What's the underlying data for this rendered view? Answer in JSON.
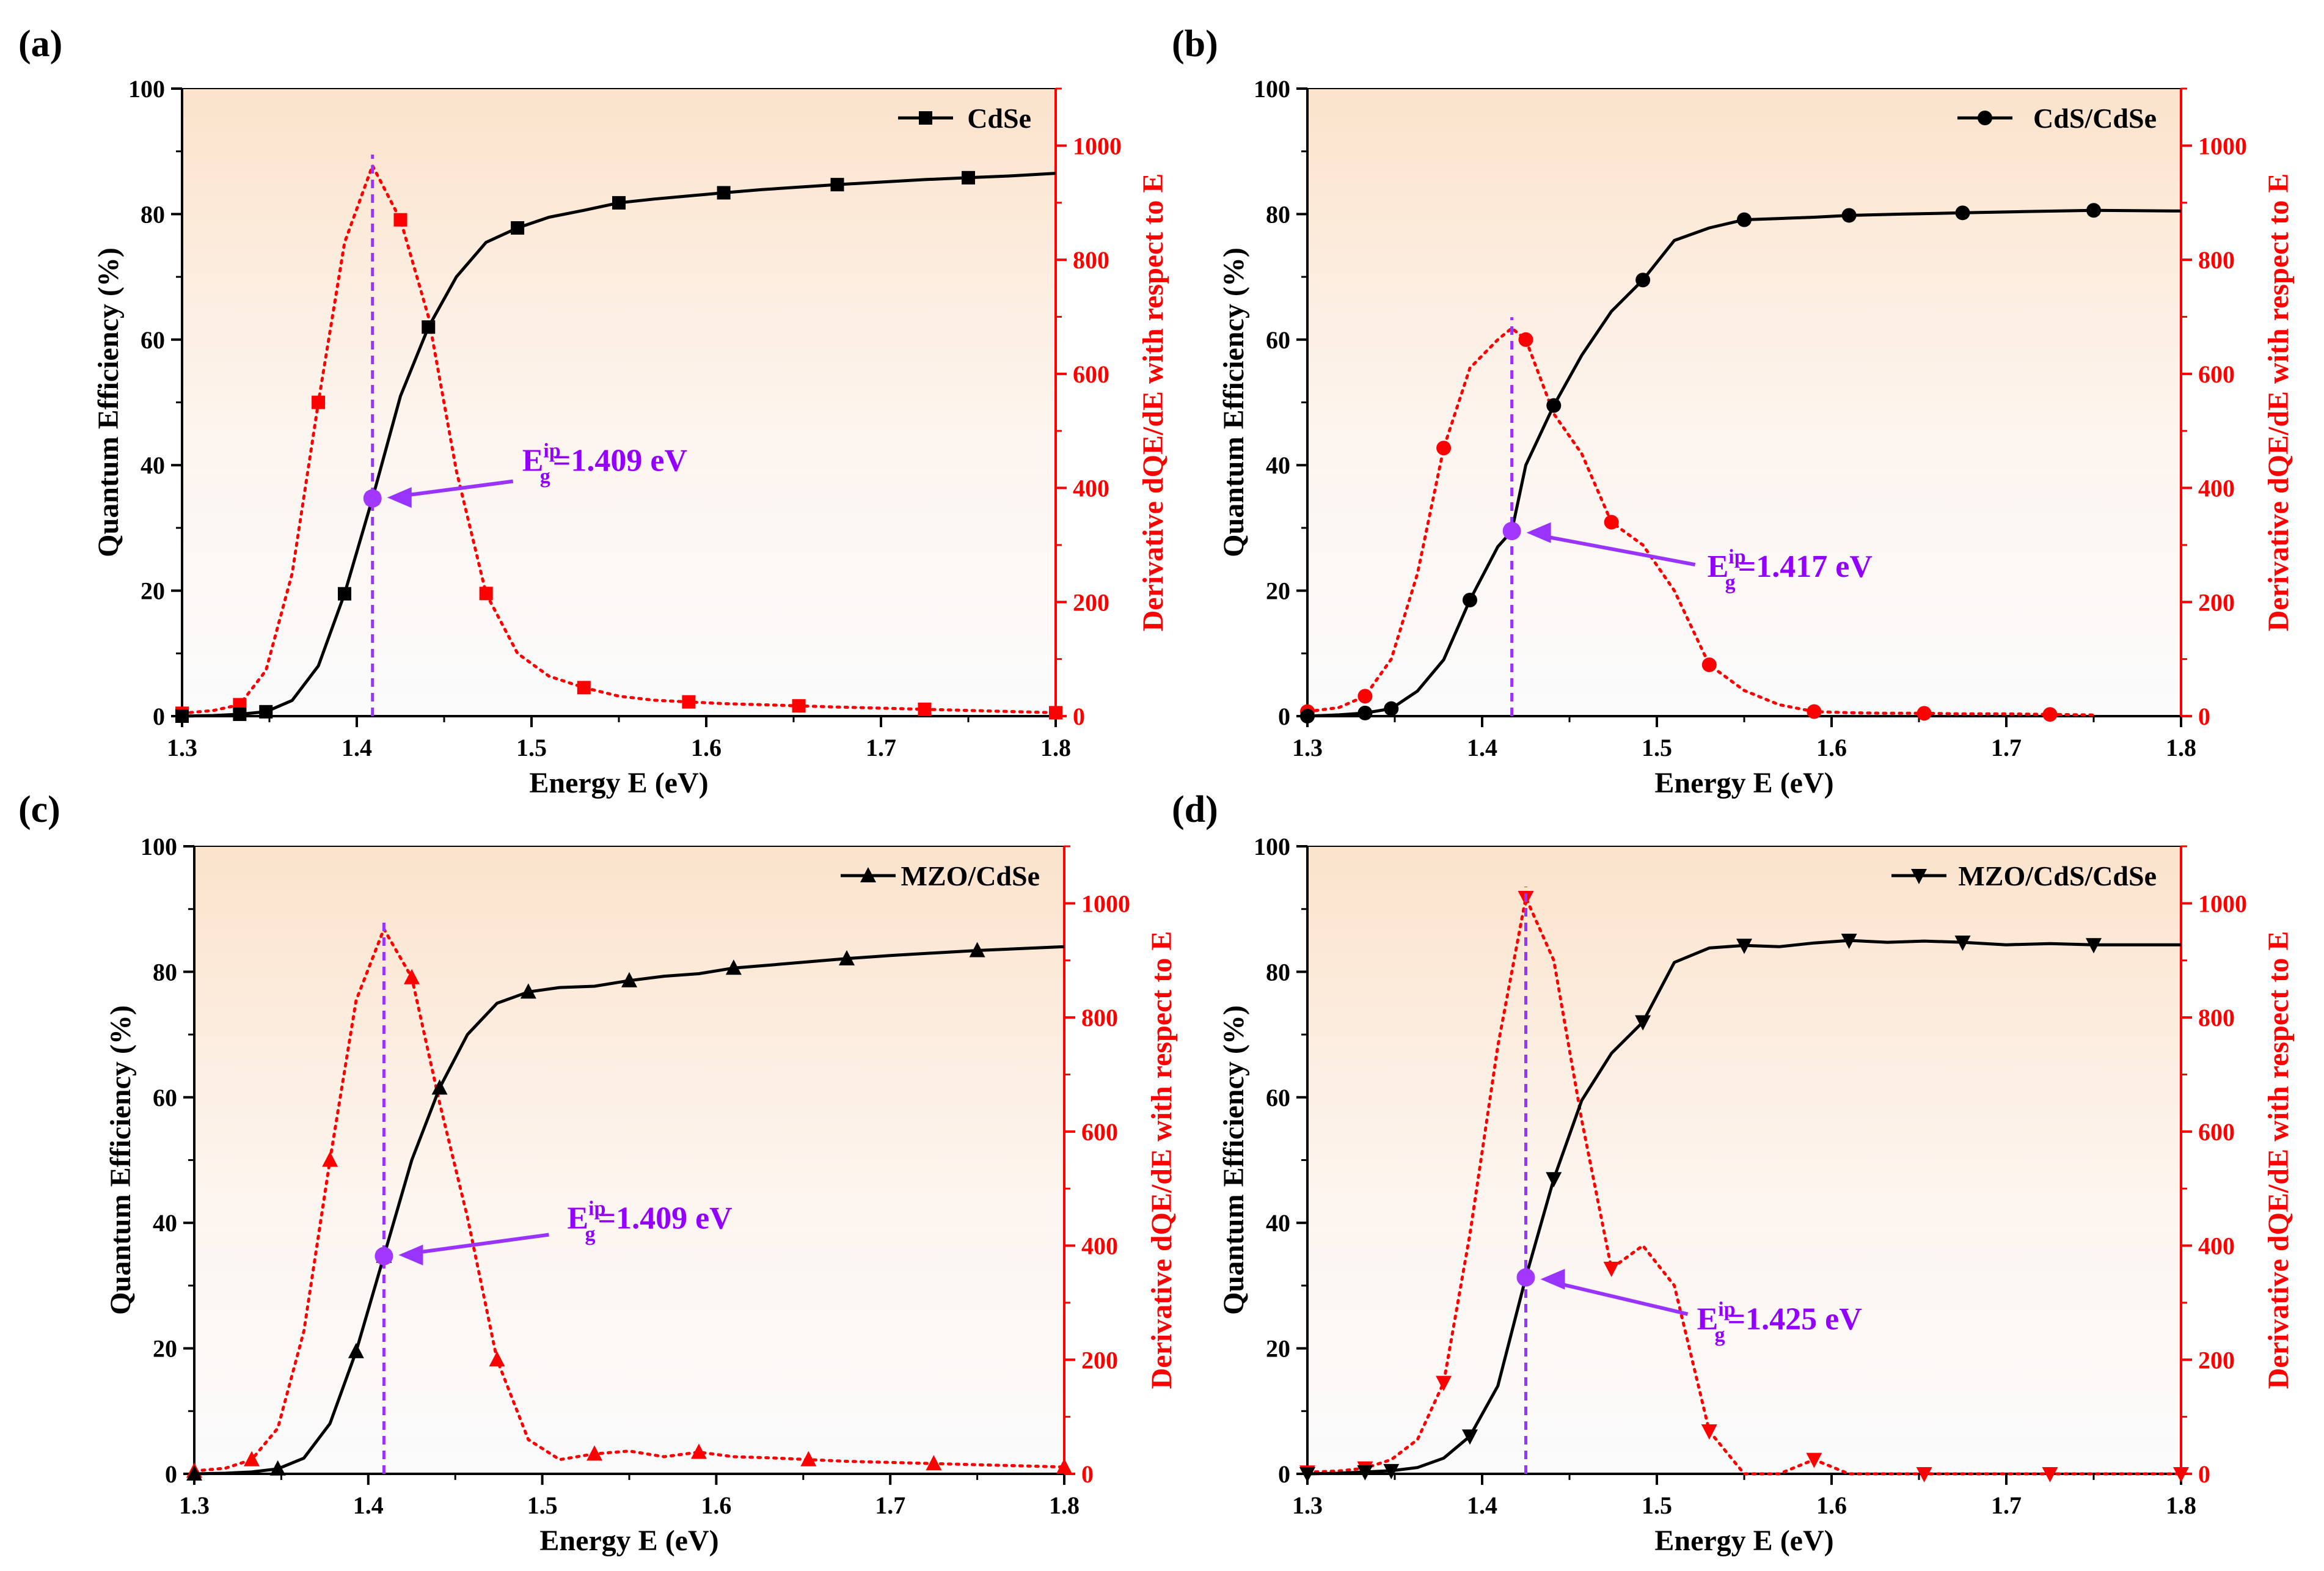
{
  "chart_data": [
    {
      "type": "line",
      "panel_label": "(a)",
      "xlabel": "Energy E (eV)",
      "ylabel": "Quantum Efficiency (%)",
      "y2label": "Derivative dQE/dE with respect to E",
      "xlim": [
        1.3,
        1.8
      ],
      "ylim": [
        0,
        100
      ],
      "y2lim": [
        0,
        1100
      ],
      "xticks": [
        "1.3",
        "1.4",
        "1.5",
        "1.6",
        "1.7",
        "1.8"
      ],
      "yticks": [
        "0",
        "20",
        "40",
        "60",
        "80",
        "100"
      ],
      "y2ticks": [
        "0",
        "200",
        "400",
        "600",
        "800",
        "1000"
      ],
      "legend": "CdSe",
      "marker": "square",
      "annotation": {
        "prefix": "E",
        "sub": "g",
        "sup": "ip",
        "text": "=1.409 eV",
        "x": 1.409,
        "qe": 34.7
      },
      "series": [
        {
          "name": "QE",
          "axis": "left",
          "x": [
            1.3,
            1.318,
            1.333,
            1.348,
            1.363,
            1.378,
            1.393,
            1.409,
            1.425,
            1.441,
            1.457,
            1.474,
            1.492,
            1.51,
            1.53,
            1.55,
            1.57,
            1.59,
            1.61,
            1.632,
            1.653,
            1.675,
            1.7,
            1.725,
            1.75,
            1.775,
            1.8
          ],
          "y": [
            0,
            0.1,
            0.3,
            0.7,
            2.5,
            8,
            19.5,
            34.7,
            51,
            62,
            70,
            75.5,
            77.8,
            79.5,
            80.6,
            81.8,
            82.4,
            82.9,
            83.4,
            83.9,
            84.3,
            84.7,
            85.1,
            85.5,
            85.8,
            86.1,
            86.5
          ],
          "markers_x": [
            1.3,
            1.333,
            1.348,
            1.393,
            1.409,
            1.441,
            1.492,
            1.55,
            1.61,
            1.675,
            1.75
          ]
        },
        {
          "name": "dQE/dE",
          "axis": "right",
          "x": [
            1.3,
            1.318,
            1.333,
            1.348,
            1.363,
            1.378,
            1.393,
            1.409,
            1.425,
            1.441,
            1.457,
            1.474,
            1.492,
            1.51,
            1.53,
            1.55,
            1.57,
            1.59,
            1.61,
            1.632,
            1.653,
            1.675,
            1.7,
            1.725,
            1.75,
            1.775,
            1.8
          ],
          "y": [
            5,
            10,
            20,
            80,
            250,
            550,
            830,
            965,
            870,
            700,
            430,
            215,
            110,
            70,
            50,
            35,
            28,
            25,
            22,
            20,
            18,
            16,
            14,
            12,
            10,
            8,
            6
          ],
          "markers_x": [
            1.3,
            1.333,
            1.378,
            1.425,
            1.474,
            1.53,
            1.59,
            1.653,
            1.725,
            1.8
          ]
        }
      ]
    },
    {
      "type": "line",
      "panel_label": "(b)",
      "xlabel": "Energy E (eV)",
      "ylabel": "Quantum Efficiency (%)",
      "y2label": "Derivative dQE/dE with respect to E",
      "xlim": [
        1.3,
        1.8
      ],
      "ylim": [
        0,
        100
      ],
      "y2lim": [
        0,
        1100
      ],
      "xticks": [
        "1.3",
        "1.4",
        "1.5",
        "1.6",
        "1.7",
        "1.8"
      ],
      "yticks": [
        "0",
        "20",
        "40",
        "60",
        "80",
        "100"
      ],
      "y2ticks": [
        "0",
        "200",
        "400",
        "600",
        "800",
        "1000"
      ],
      "legend": "CdS/CdSe",
      "marker": "circle",
      "annotation": {
        "prefix": "E",
        "sub": "g",
        "sup": "ip",
        "text": "=1.417 eV",
        "x": 1.417,
        "qe": 29.5
      },
      "series": [
        {
          "name": "QE",
          "axis": "left",
          "x": [
            1.3,
            1.318,
            1.333,
            1.348,
            1.363,
            1.378,
            1.393,
            1.409,
            1.417,
            1.425,
            1.441,
            1.457,
            1.474,
            1.492,
            1.51,
            1.53,
            1.55,
            1.57,
            1.59,
            1.61,
            1.64,
            1.675,
            1.71,
            1.75,
            1.8
          ],
          "y": [
            0,
            0.2,
            0.5,
            1.2,
            4,
            9,
            18.5,
            27,
            29.5,
            40,
            49.5,
            57.5,
            64.5,
            69.5,
            75.8,
            77.8,
            79.1,
            79.3,
            79.5,
            79.8,
            80.0,
            80.2,
            80.4,
            80.6,
            80.5
          ],
          "markers_x": [
            1.3,
            1.333,
            1.348,
            1.393,
            1.441,
            1.492,
            1.55,
            1.61,
            1.675,
            1.75
          ]
        },
        {
          "name": "dQE/dE",
          "axis": "right",
          "x": [
            1.3,
            1.318,
            1.333,
            1.348,
            1.363,
            1.378,
            1.393,
            1.409,
            1.417,
            1.425,
            1.441,
            1.457,
            1.474,
            1.492,
            1.51,
            1.53,
            1.55,
            1.57,
            1.59,
            1.61,
            1.632,
            1.653,
            1.675,
            1.7,
            1.725,
            1.75
          ],
          "y": [
            8,
            15,
            35,
            100,
            250,
            470,
            610,
            660,
            680,
            660,
            530,
            460,
            340,
            300,
            220,
            90,
            45,
            20,
            8,
            6,
            5,
            5,
            4,
            4,
            3,
            2
          ],
          "markers_x": [
            1.3,
            1.333,
            1.378,
            1.425,
            1.474,
            1.53,
            1.59,
            1.653,
            1.725
          ]
        }
      ]
    },
    {
      "type": "line",
      "panel_label": "(c)",
      "xlabel": "Energy E (eV)",
      "ylabel": "Quantum Efficiency (%)",
      "y2label": "Derivative dQE/dE with respect to E",
      "xlim": [
        1.3,
        1.8
      ],
      "ylim": [
        0,
        100
      ],
      "y2lim": [
        0,
        1100
      ],
      "xticks": [
        "1.3",
        "1.4",
        "1.5",
        "1.6",
        "1.7",
        "1.8"
      ],
      "yticks": [
        "0",
        "20",
        "40",
        "60",
        "80",
        "100"
      ],
      "y2ticks": [
        "0",
        "200",
        "400",
        "600",
        "800",
        "1000"
      ],
      "legend": "MZO/CdSe",
      "marker": "triangle-up",
      "annotation": {
        "prefix": "E",
        "sub": "g",
        "sup": "ip",
        "text": "=1.409 eV",
        "x": 1.409,
        "qe": 34.7
      },
      "series": [
        {
          "name": "QE",
          "axis": "left",
          "x": [
            1.3,
            1.318,
            1.333,
            1.348,
            1.363,
            1.378,
            1.393,
            1.409,
            1.425,
            1.441,
            1.457,
            1.474,
            1.492,
            1.51,
            1.53,
            1.55,
            1.57,
            1.59,
            1.61,
            1.632,
            1.653,
            1.675,
            1.7,
            1.725,
            1.75,
            1.775,
            1.8
          ],
          "y": [
            0,
            0.1,
            0.3,
            0.8,
            2.5,
            8,
            19.5,
            34.7,
            50,
            61.5,
            70,
            75,
            76.8,
            77.5,
            77.7,
            78.6,
            79.3,
            79.7,
            80.6,
            81.1,
            81.6,
            82.1,
            82.6,
            83.0,
            83.4,
            83.7,
            84.0
          ],
          "markers_x": [
            1.3,
            1.348,
            1.393,
            1.409,
            1.441,
            1.492,
            1.55,
            1.61,
            1.675,
            1.75
          ]
        },
        {
          "name": "dQE/dE",
          "axis": "right",
          "x": [
            1.3,
            1.318,
            1.333,
            1.348,
            1.363,
            1.378,
            1.393,
            1.409,
            1.425,
            1.441,
            1.457,
            1.474,
            1.492,
            1.51,
            1.53,
            1.55,
            1.57,
            1.59,
            1.61,
            1.632,
            1.653,
            1.675,
            1.7,
            1.725,
            1.75,
            1.775,
            1.8
          ],
          "y": [
            5,
            10,
            25,
            80,
            250,
            550,
            830,
            955,
            870,
            650,
            450,
            200,
            60,
            25,
            35,
            40,
            30,
            38,
            30,
            28,
            25,
            22,
            20,
            18,
            16,
            14,
            12
          ],
          "markers_x": [
            1.3,
            1.333,
            1.378,
            1.425,
            1.474,
            1.53,
            1.59,
            1.653,
            1.725,
            1.8
          ]
        }
      ]
    },
    {
      "type": "line",
      "panel_label": "(d)",
      "xlabel": "Energy E (eV)",
      "ylabel": "Quantum Efficiency (%)",
      "y2label": "Derivative dQE/dE with respect to E",
      "xlim": [
        1.3,
        1.8
      ],
      "ylim": [
        0,
        100
      ],
      "y2lim": [
        0,
        1100
      ],
      "xticks": [
        "1.3",
        "1.4",
        "1.5",
        "1.6",
        "1.7",
        "1.8"
      ],
      "yticks": [
        "0",
        "20",
        "40",
        "60",
        "80",
        "100"
      ],
      "y2ticks": [
        "0",
        "200",
        "400",
        "600",
        "800",
        "1000"
      ],
      "legend": "MZO/CdS/CdSe",
      "marker": "triangle-down",
      "annotation": {
        "prefix": "E",
        "sub": "g",
        "sup": "ip",
        "text": "=1.425 eV",
        "x": 1.425,
        "qe": 31.3
      },
      "series": [
        {
          "name": "QE",
          "axis": "left",
          "x": [
            1.3,
            1.318,
            1.333,
            1.348,
            1.363,
            1.378,
            1.393,
            1.409,
            1.425,
            1.441,
            1.457,
            1.474,
            1.492,
            1.51,
            1.53,
            1.55,
            1.57,
            1.59,
            1.61,
            1.632,
            1.653,
            1.675,
            1.7,
            1.725,
            1.75,
            1.775,
            1.8
          ],
          "y": [
            0,
            0.1,
            0.3,
            0.5,
            1,
            2.5,
            6,
            14,
            31.3,
            47,
            59.5,
            67,
            72,
            81.5,
            83.8,
            84.2,
            84.0,
            84.6,
            85.0,
            84.7,
            84.9,
            84.7,
            84.3,
            84.5,
            84.3,
            84.3,
            84.3
          ],
          "markers_x": [
            1.3,
            1.333,
            1.348,
            1.393,
            1.441,
            1.492,
            1.55,
            1.61,
            1.675,
            1.75
          ]
        },
        {
          "name": "dQE/dE",
          "axis": "right",
          "x": [
            1.3,
            1.318,
            1.333,
            1.348,
            1.363,
            1.378,
            1.393,
            1.409,
            1.425,
            1.441,
            1.457,
            1.474,
            1.492,
            1.51,
            1.53,
            1.55,
            1.57,
            1.59,
            1.61,
            1.632,
            1.653,
            1.675,
            1.7,
            1.725,
            1.75,
            1.775,
            1.8
          ],
          "y": [
            3,
            5,
            10,
            25,
            60,
            160,
            420,
            750,
            1010,
            900,
            620,
            360,
            400,
            330,
            75,
            0,
            0,
            25,
            0,
            0,
            0,
            0,
            0,
            0,
            0,
            0,
            0
          ],
          "markers_x": [
            1.3,
            1.333,
            1.378,
            1.425,
            1.474,
            1.53,
            1.59,
            1.653,
            1.725,
            1.8
          ]
        }
      ]
    }
  ]
}
